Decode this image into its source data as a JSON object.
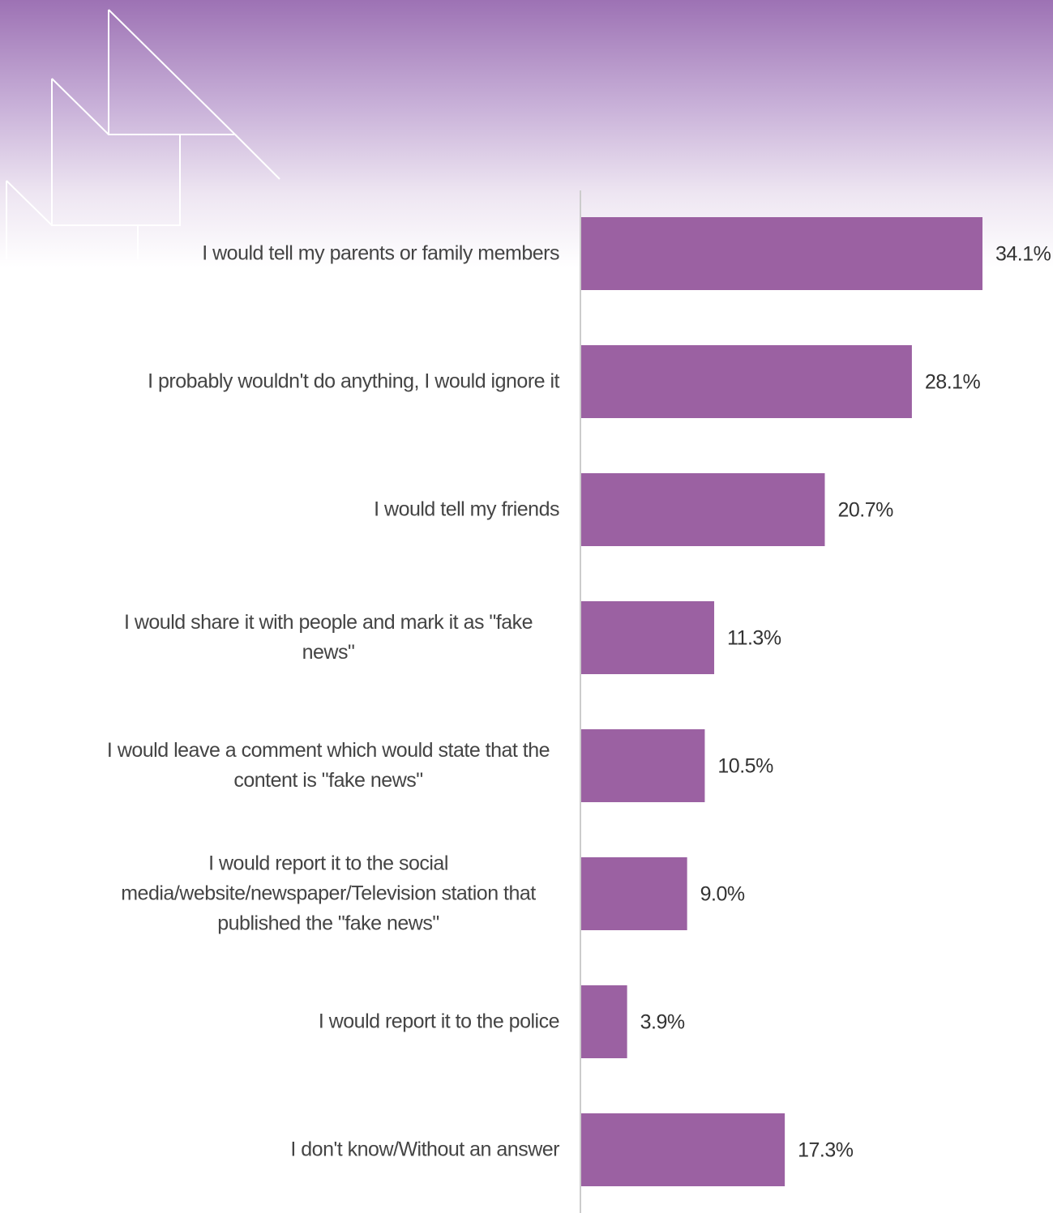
{
  "chart_data": {
    "type": "bar",
    "orientation": "horizontal",
    "color": "#9b61a2",
    "categories": [
      "I would tell my parents or family members",
      "I probably wouldn't do anything, I would ignore it",
      "I would tell my friends",
      "I would share it with people and mark it as \"fake news\"",
      "I would leave a comment which would state that the content is \"fake news\"",
      "I would report it to the social media/website/newspaper/Television station that published the \"fake news\"",
      "I would report it to the police",
      "I don't know/Without an answer"
    ],
    "values": [
      34.1,
      28.1,
      20.7,
      11.3,
      10.5,
      9.0,
      3.9,
      17.3
    ],
    "value_labels": [
      "34.1%",
      "28.1%",
      "20.7%",
      "11.3%",
      "10.5%",
      "9.0%",
      "3.9%",
      "17.3%"
    ]
  }
}
